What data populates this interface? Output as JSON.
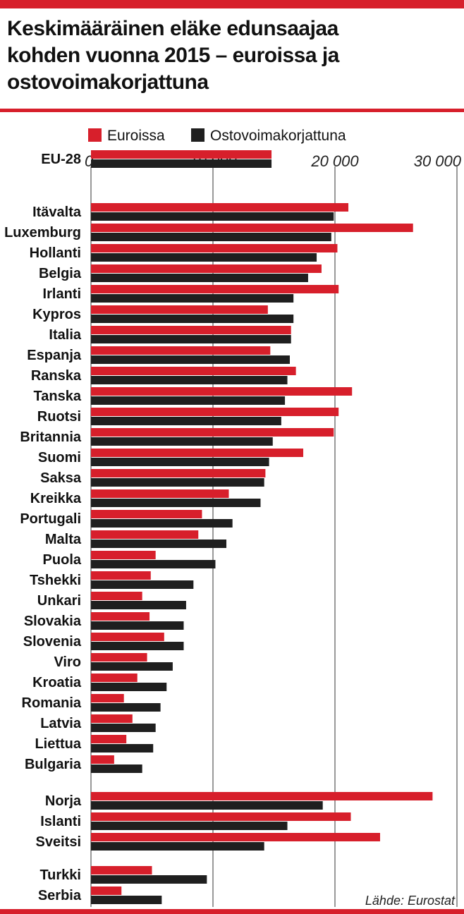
{
  "title_lines": [
    "Keskimääräinen eläke edunsaajaa",
    "kohden vuonna 2015 – euroissa ja",
    "ostovoimakorjattuna"
  ],
  "source": "Lähde: Eurostat",
  "colors": {
    "accent": "#d71f2b",
    "dark": "#1f1f1f",
    "grid": "#333333"
  },
  "chart_data": {
    "type": "bar",
    "orientation": "horizontal",
    "title": "Keskimääräinen eläke edunsaajaa kohden vuonna 2015 – euroissa ja ostovoimakorjattuna",
    "xlim": [
      0,
      30000
    ],
    "xticks": [
      0,
      10000,
      20000,
      30000
    ],
    "xtick_labels": [
      "0",
      "10 000",
      "20 000",
      "30 000"
    ],
    "legend": [
      "Euroissa",
      "Ostovoimakorjattuna"
    ],
    "series": [
      {
        "name": "Euroissa",
        "color": "#d71f2b",
        "values": [
          14800,
          21100,
          26400,
          20200,
          18900,
          20300,
          14500,
          16400,
          14700,
          16800,
          21400,
          20300,
          19900,
          17400,
          14300,
          11300,
          9100,
          8800,
          5300,
          4900,
          4200,
          4800,
          6000,
          4600,
          3800,
          2700,
          3400,
          2900,
          1900,
          28000,
          21300,
          23700,
          5000,
          2500
        ]
      },
      {
        "name": "Ostovoimakorjattuna",
        "color": "#1f1f1f",
        "values": [
          14800,
          19900,
          19700,
          18500,
          17800,
          16600,
          16600,
          16400,
          16300,
          16100,
          15900,
          15600,
          14900,
          14600,
          14200,
          13900,
          11600,
          11100,
          10200,
          8400,
          7800,
          7600,
          7600,
          6700,
          6200,
          5700,
          5300,
          5100,
          4200,
          19000,
          16100,
          14200,
          9500,
          5800
        ]
      }
    ],
    "categories": [
      "EU-28",
      "Itävalta",
      "Luxemburg",
      "Hollanti",
      "Belgia",
      "Irlanti",
      "Kypros",
      "Italia",
      "Espanja",
      "Ranska",
      "Tanska",
      "Ruotsi",
      "Britannia",
      "Suomi",
      "Saksa",
      "Kreikka",
      "Portugali",
      "Malta",
      "Puola",
      "Tshekki",
      "Unkari",
      "Slovakia",
      "Slovenia",
      "Viro",
      "Kroatia",
      "Romania",
      "Latvia",
      "Liettua",
      "Bulgaria",
      "Norja",
      "Islanti",
      "Sveitsi",
      "Turkki",
      "Serbia"
    ]
  }
}
